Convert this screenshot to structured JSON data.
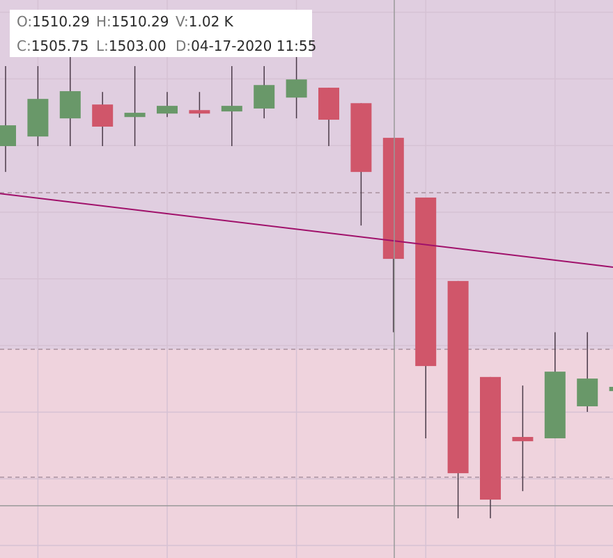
{
  "chart_data": {
    "type": "candlestick",
    "categories": [
      null,
      null,
      null,
      null,
      null,
      null,
      null,
      null,
      null,
      null,
      null,
      null,
      null,
      null,
      null,
      null,
      null,
      null,
      null,
      null
    ],
    "open": [
      1509.98,
      1510.34,
      1511.02,
      1511.54,
      1511.07,
      1511.2,
      1511.33,
      1511.28,
      1511.39,
      1511.8,
      1512.17,
      1511.59,
      1510.29,
      1508.05,
      1504.92,
      1501.32,
      1499.07,
      1499.02,
      1500.22,
      1500.79
    ],
    "high": [
      1512.98,
      1512.98,
      1513.32,
      1512.01,
      1512.98,
      1512.01,
      1512.01,
      1512.98,
      1512.98,
      1513.32,
      1512.17,
      1511.59,
      1510.29,
      1508.05,
      1504.92,
      1501.32,
      1501.0,
      1503.0,
      1503.0,
      1500.95
    ],
    "low": [
      1509.01,
      1509.98,
      1509.98,
      1509.98,
      1509.98,
      1511.07,
      1511.05,
      1509.98,
      1511.02,
      1511.02,
      1509.98,
      1507.0,
      1503.0,
      1499.02,
      1496.02,
      1496.02,
      1497.04,
      1499.02,
      1500.01,
      1500.79
    ],
    "close": [
      1510.76,
      1511.75,
      1512.04,
      1510.71,
      1511.23,
      1511.49,
      1511.2,
      1511.49,
      1512.27,
      1512.48,
      1510.97,
      1509.01,
      1505.75,
      1501.73,
      1497.71,
      1496.72,
      1498.91,
      1501.52,
      1501.26,
      1500.95
    ],
    "up_color": "#699869",
    "down_color": "#d0566a",
    "ylim": [
      1494.53,
      1515.46
    ],
    "yticks": [
      1495.0,
      1497.5,
      1500.0,
      1502.5,
      1505.0,
      1507.5,
      1510.0,
      1512.5,
      1515.0
    ],
    "grid": true,
    "levels": [
      1508.23,
      1502.36,
      1497.56
    ],
    "trendline": {
      "color": "#a0106a",
      "start": 1508.2,
      "end": 1505.44
    },
    "crosshair_price": 1496.49,
    "tooltip": [
      {
        "label": "O:",
        "value": "1510.29"
      },
      {
        "label": "H:",
        "value": "1510.29"
      },
      {
        "label": "V:",
        "value": "1.02 K"
      },
      {
        "label": "C:",
        "value": "1505.75"
      },
      {
        "label": "L:",
        "value": "1503.00"
      },
      {
        "label": "D:",
        "value": "04-17-2020 11:55"
      }
    ]
  }
}
